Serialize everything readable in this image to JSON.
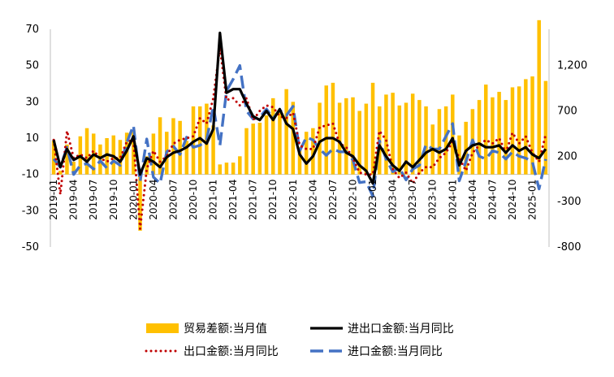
{
  "chart_data": {
    "type": "bar+line",
    "categories": [
      "2019-01",
      "2019-02",
      "2019-03",
      "2019-04",
      "2019-05",
      "2019-06",
      "2019-07",
      "2019-08",
      "2019-09",
      "2019-10",
      "2019-11",
      "2019-12",
      "2020-01",
      "2020-02",
      "2020-03",
      "2020-04",
      "2020-05",
      "2020-06",
      "2020-07",
      "2020-08",
      "2020-09",
      "2020-10",
      "2020-11",
      "2020-12",
      "2021-01",
      "2021-02",
      "2021-03",
      "2021-04",
      "2021-05",
      "2021-06",
      "2021-07",
      "2021-08",
      "2021-09",
      "2021-10",
      "2021-11",
      "2021-12",
      "2022-01",
      "2022-02",
      "2022-03",
      "2022-04",
      "2022-05",
      "2022-06",
      "2022-07",
      "2022-08",
      "2022-09",
      "2022-10",
      "2022-11",
      "2022-12",
      "2023-01",
      "2023-02",
      "2023-03",
      "2023-04",
      "2023-05",
      "2023-06",
      "2023-07",
      "2023-08",
      "2023-09",
      "2023-10",
      "2023-11",
      "2023-12",
      "2024-01",
      "2024-02",
      "2024-03",
      "2024-04",
      "2024-05",
      "2024-06",
      "2024-07",
      "2024-08",
      "2024-09",
      "2024-10",
      "2024-11",
      "2024-12",
      "2025-01",
      "2025-02",
      "2025-03"
    ],
    "x_tick_labels": [
      "2019-01",
      "2019-04",
      "2019-07",
      "2019-10",
      "2020-01",
      "2020-04",
      "2020-07",
      "2020-10",
      "2021-01",
      "2021-04",
      "2021-07",
      "2021-10",
      "2022-01",
      "2022-04",
      "2022-07",
      "2022-10",
      "2023-01",
      "2023-04",
      "2023-07",
      "2023-10",
      "2024-01",
      "2024-04",
      "2024-07",
      "2024-10",
      "2025-01"
    ],
    "left_axis": {
      "min": -50,
      "max": 70,
      "ticks": [
        "70",
        "50",
        "30",
        "10",
        "-10",
        "-30",
        "-50"
      ]
    },
    "right_axis": {
      "min": -800,
      "max": 1600,
      "ticks": [
        "1,200",
        "700",
        "200",
        "-300",
        "-800"
      ]
    },
    "series": [
      {
        "name": "贸易差额:当月值",
        "kind": "bar",
        "axis": "right",
        "color": "#FFC000",
        "values": [
          370,
          40,
          330,
          140,
          420,
          510,
          450,
          330,
          400,
          430,
          380,
          460,
          490,
          -620,
          200,
          450,
          630,
          470,
          620,
          590,
          370,
          750,
          750,
          780,
          540,
          110,
          130,
          130,
          200,
          510,
          560,
          570,
          650,
          840,
          710,
          940,
          800,
          300,
          470,
          510,
          790,
          980,
          1010,
          790,
          840,
          850,
          700,
          780,
          1010,
          750,
          880,
          900,
          760,
          790,
          890,
          820,
          750,
          550,
          720,
          750,
          880,
          430,
          580,
          720,
          820,
          990,
          850,
          910,
          820,
          960,
          970,
          1050,
          1080,
          1700,
          1030
        ]
      },
      {
        "name": "进出口金额:当月同比",
        "kind": "line",
        "axis": "left",
        "color": "#000000",
        "style": "solid",
        "values": [
          9,
          -6,
          4,
          -2,
          0,
          -3,
          1,
          -1,
          1,
          0,
          -3,
          3,
          11,
          -10,
          -1,
          -3,
          -6,
          -0.5,
          2,
          3,
          5,
          8,
          10,
          7,
          15,
          68,
          35,
          37,
          37,
          29,
          22,
          20,
          25,
          20,
          26,
          18,
          15,
          1,
          -4,
          0,
          8,
          10,
          10,
          8,
          2,
          0,
          -5,
          -8,
          -15,
          6,
          0,
          -5,
          -8,
          -3,
          -6,
          -2,
          2,
          4,
          2,
          4,
          10,
          -5,
          3,
          6,
          7,
          5,
          5,
          6,
          2,
          6,
          3,
          5,
          1,
          -1,
          4
        ]
      },
      {
        "name": "出口金额:当月同比",
        "kind": "line",
        "axis": "left",
        "color": "#C00000",
        "style": "dotted",
        "values": [
          9,
          -21,
          14,
          -1,
          1,
          -1,
          3,
          -1,
          -3,
          -1,
          -1,
          8,
          9,
          -40,
          -7,
          3,
          -3,
          0,
          7,
          9,
          10,
          11,
          21,
          18,
          32,
          60,
          31,
          32,
          28,
          32,
          20,
          25,
          28,
          27,
          22,
          21,
          24,
          6,
          4,
          4,
          16,
          17,
          18,
          7,
          5,
          -1,
          -9,
          -10,
          -10,
          14,
          9,
          -7,
          -12,
          -9,
          -15,
          -9,
          -6,
          -6,
          -1,
          2,
          8,
          -1,
          -8,
          2,
          6,
          9,
          7,
          10,
          2,
          13,
          7,
          11,
          2,
          -3,
          12
        ]
      },
      {
        "name": "进口金额:当月同比",
        "kind": "line",
        "axis": "right",
        "color": "#4472C4",
        "style": "dashed",
        "values": [
          170,
          80,
          300,
          0,
          100,
          120,
          60,
          150,
          70,
          150,
          100,
          350,
          540,
          -80,
          390,
          -30,
          -100,
          250,
          310,
          220,
          410,
          300,
          320,
          380,
          750,
          320,
          920,
          1050,
          1200,
          700,
          610,
          630,
          720,
          620,
          710,
          650,
          750,
          260,
          410,
          380,
          280,
          210,
          280,
          250,
          250,
          160,
          -90,
          -80,
          -240,
          370,
          170,
          30,
          70,
          -60,
          60,
          100,
          330,
          280,
          280,
          420,
          560,
          -70,
          140,
          380,
          200,
          170,
          260,
          240,
          170,
          250,
          200,
          180,
          140,
          -160,
          170
        ]
      }
    ]
  }
}
